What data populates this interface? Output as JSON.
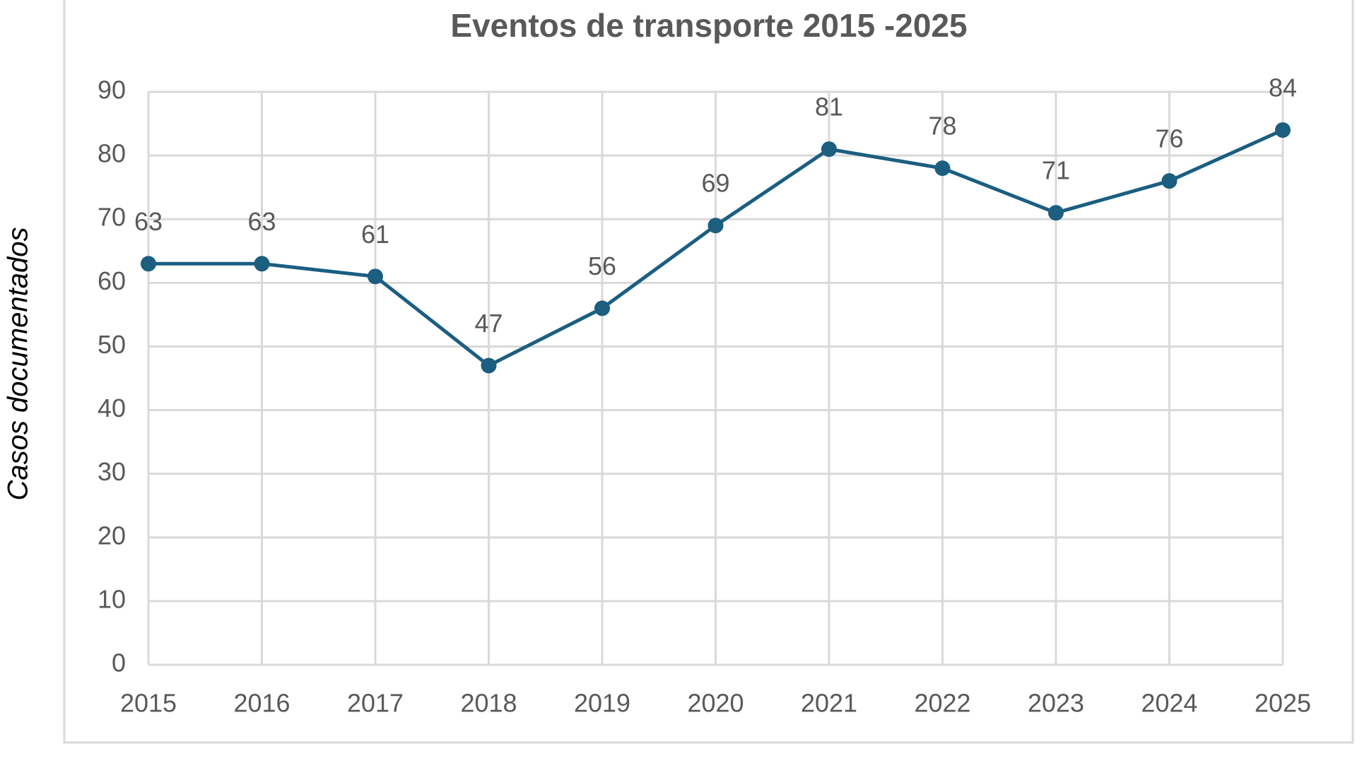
{
  "chart_data": {
    "type": "line",
    "title": "Eventos de transporte 2015 -2025",
    "y_label": "Casos documentados",
    "categories": [
      "2015",
      "2016",
      "2017",
      "2018",
      "2019",
      "2020",
      "2021",
      "2022",
      "2023",
      "2024",
      "2025"
    ],
    "series": [
      {
        "color": "#1b5e80",
        "values": [
          63,
          63,
          61,
          47,
          56,
          69,
          81,
          78,
          71,
          76,
          84
        ]
      }
    ],
    "ylim": [
      0,
      90
    ],
    "yticks": [
      0,
      10,
      20,
      30,
      40,
      50,
      60,
      70,
      80,
      90
    ],
    "grid": true,
    "data_labels": true
  }
}
